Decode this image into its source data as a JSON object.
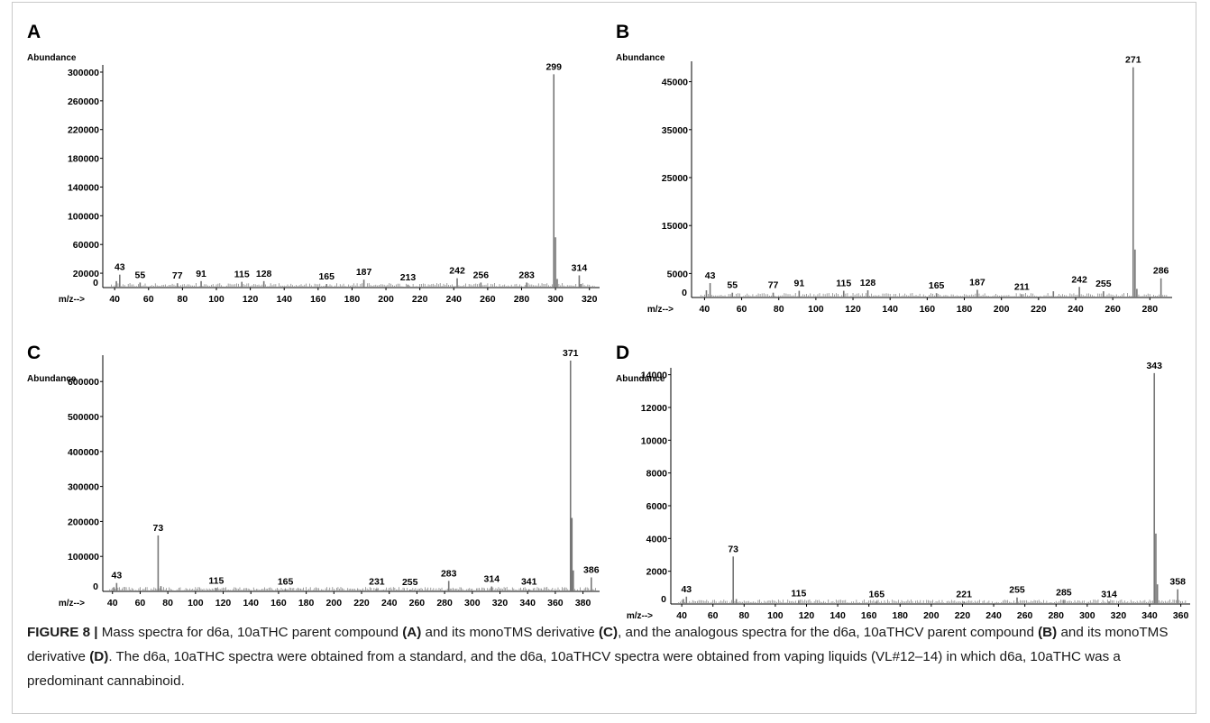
{
  "figure": {
    "caption": {
      "label": "FIGURE 8 |",
      "parts": [
        {
          "text": " Mass spectra for d6a, 10aTHC parent compound ",
          "bold": false
        },
        {
          "text": "(A)",
          "bold": true
        },
        {
          "text": " and its monoTMS derivative ",
          "bold": false
        },
        {
          "text": "(C)",
          "bold": true
        },
        {
          "text": ", and the analogous spectra for the d6a, 10aTHCV parent compound ",
          "bold": false
        },
        {
          "text": "(B)",
          "bold": true
        },
        {
          "text": " and its monoTMS derivative ",
          "bold": false
        },
        {
          "text": "(D)",
          "bold": true
        },
        {
          "text": ". The d6a, 10aTHC spectra were obtained from a standard, and the d6a, 10aTHCV spectra were obtained from vaping liquids (VL#12–14) in which d6a, 10aTHC was a predominant cannabinoid.",
          "bold": false
        }
      ]
    }
  },
  "chart_data": [
    {
      "panel": "A",
      "type": "bar",
      "ylabel": "Abundance",
      "xlabel": "m/z-->",
      "xlim": [
        33,
        326
      ],
      "ylim": [
        0,
        305000
      ],
      "xticks": [
        40,
        60,
        80,
        100,
        120,
        140,
        160,
        180,
        200,
        220,
        240,
        260,
        280,
        300,
        320
      ],
      "yticks": [
        0,
        20000,
        60000,
        100000,
        140000,
        180000,
        220000,
        260000,
        300000
      ],
      "peaks": [
        {
          "mz": 41,
          "abundance": 9000
        },
        {
          "mz": 43,
          "abundance": 18000,
          "label": "43"
        },
        {
          "mz": 55,
          "abundance": 7000,
          "label": "55"
        },
        {
          "mz": 77,
          "abundance": 6000,
          "label": "77"
        },
        {
          "mz": 91,
          "abundance": 9000,
          "label": "91"
        },
        {
          "mz": 115,
          "abundance": 8000,
          "label": "115"
        },
        {
          "mz": 128,
          "abundance": 9000,
          "label": "128"
        },
        {
          "mz": 165,
          "abundance": 5000,
          "label": "165"
        },
        {
          "mz": 187,
          "abundance": 11000,
          "label": "187"
        },
        {
          "mz": 213,
          "abundance": 4000,
          "label": "213"
        },
        {
          "mz": 242,
          "abundance": 13000,
          "label": "242"
        },
        {
          "mz": 256,
          "abundance": 7000,
          "label": "256"
        },
        {
          "mz": 283,
          "abundance": 7000,
          "label": "283"
        },
        {
          "mz": 299,
          "abundance": 297000,
          "label": "299"
        },
        {
          "mz": 300,
          "abundance": 70000
        },
        {
          "mz": 301,
          "abundance": 12000
        },
        {
          "mz": 314,
          "abundance": 17000,
          "label": "314"
        },
        {
          "mz": 315,
          "abundance": 5000
        }
      ]
    },
    {
      "panel": "B",
      "type": "bar",
      "ylabel": "Abundance",
      "xlabel": "m/z-->",
      "xlim": [
        33,
        292
      ],
      "ylim": [
        0,
        48500
      ],
      "xticks": [
        40,
        60,
        80,
        100,
        120,
        140,
        160,
        180,
        200,
        220,
        240,
        260,
        280
      ],
      "yticks": [
        0,
        5000,
        15000,
        25000,
        35000,
        45000
      ],
      "peaks": [
        {
          "mz": 41,
          "abundance": 1500
        },
        {
          "mz": 43,
          "abundance": 3000,
          "label": "43"
        },
        {
          "mz": 55,
          "abundance": 1000,
          "label": "55"
        },
        {
          "mz": 77,
          "abundance": 1000,
          "label": "77"
        },
        {
          "mz": 91,
          "abundance": 1400,
          "label": "91"
        },
        {
          "mz": 115,
          "abundance": 1400,
          "label": "115"
        },
        {
          "mz": 128,
          "abundance": 1500,
          "label": "128"
        },
        {
          "mz": 165,
          "abundance": 900,
          "label": "165"
        },
        {
          "mz": 187,
          "abundance": 1600,
          "label": "187"
        },
        {
          "mz": 211,
          "abundance": 700,
          "label": "211"
        },
        {
          "mz": 228,
          "abundance": 1300
        },
        {
          "mz": 242,
          "abundance": 2200,
          "label": "242"
        },
        {
          "mz": 255,
          "abundance": 1300,
          "label": "255"
        },
        {
          "mz": 271,
          "abundance": 48000,
          "label": "271"
        },
        {
          "mz": 272,
          "abundance": 10000
        },
        {
          "mz": 273,
          "abundance": 1800
        },
        {
          "mz": 286,
          "abundance": 4000,
          "label": "286"
        }
      ]
    },
    {
      "panel": "C",
      "type": "bar",
      "ylabel": "Abundance",
      "xlabel": "m/z-->",
      "xlim": [
        33,
        392
      ],
      "ylim": [
        0,
        665000
      ],
      "xticks": [
        40,
        60,
        80,
        100,
        120,
        140,
        160,
        180,
        200,
        220,
        240,
        260,
        280,
        300,
        320,
        340,
        360,
        380
      ],
      "yticks": [
        0,
        100000,
        200000,
        300000,
        400000,
        500000,
        600000
      ],
      "peaks": [
        {
          "mz": 41,
          "abundance": 12000
        },
        {
          "mz": 43,
          "abundance": 24000,
          "label": "43"
        },
        {
          "mz": 73,
          "abundance": 160000,
          "label": "73"
        },
        {
          "mz": 75,
          "abundance": 15000
        },
        {
          "mz": 115,
          "abundance": 9000,
          "label": "115"
        },
        {
          "mz": 165,
          "abundance": 6000,
          "label": "165"
        },
        {
          "mz": 231,
          "abundance": 7000,
          "label": "231"
        },
        {
          "mz": 255,
          "abundance": 5000,
          "label": "255"
        },
        {
          "mz": 283,
          "abundance": 30000,
          "label": "283"
        },
        {
          "mz": 314,
          "abundance": 14000,
          "label": "314"
        },
        {
          "mz": 341,
          "abundance": 6000,
          "label": "341"
        },
        {
          "mz": 371,
          "abundance": 660000,
          "label": "371"
        },
        {
          "mz": 372,
          "abundance": 210000
        },
        {
          "mz": 373,
          "abundance": 60000
        },
        {
          "mz": 386,
          "abundance": 40000,
          "label": "386"
        }
      ]
    },
    {
      "panel": "D",
      "type": "bar",
      "ylabel": "Abundance",
      "xlabel": "m/z-->",
      "xlim": [
        33,
        366
      ],
      "ylim": [
        0,
        14200
      ],
      "xticks": [
        40,
        60,
        80,
        100,
        120,
        140,
        160,
        180,
        200,
        220,
        240,
        260,
        280,
        300,
        320,
        340,
        360
      ],
      "yticks": [
        0,
        2000,
        4000,
        6000,
        8000,
        10000,
        12000,
        14000
      ],
      "peaks": [
        {
          "mz": 41,
          "abundance": 300
        },
        {
          "mz": 43,
          "abundance": 450,
          "label": "43"
        },
        {
          "mz": 73,
          "abundance": 2900,
          "label": "73"
        },
        {
          "mz": 75,
          "abundance": 300
        },
        {
          "mz": 115,
          "abundance": 200,
          "label": "115"
        },
        {
          "mz": 165,
          "abundance": 150,
          "label": "165"
        },
        {
          "mz": 221,
          "abundance": 150,
          "label": "221"
        },
        {
          "mz": 255,
          "abundance": 400,
          "label": "255"
        },
        {
          "mz": 285,
          "abundance": 250,
          "label": "285"
        },
        {
          "mz": 314,
          "abundance": 150,
          "label": "314"
        },
        {
          "mz": 343,
          "abundance": 14100,
          "label": "343"
        },
        {
          "mz": 344,
          "abundance": 4300
        },
        {
          "mz": 345,
          "abundance": 1200
        },
        {
          "mz": 358,
          "abundance": 900,
          "label": "358"
        }
      ]
    }
  ]
}
